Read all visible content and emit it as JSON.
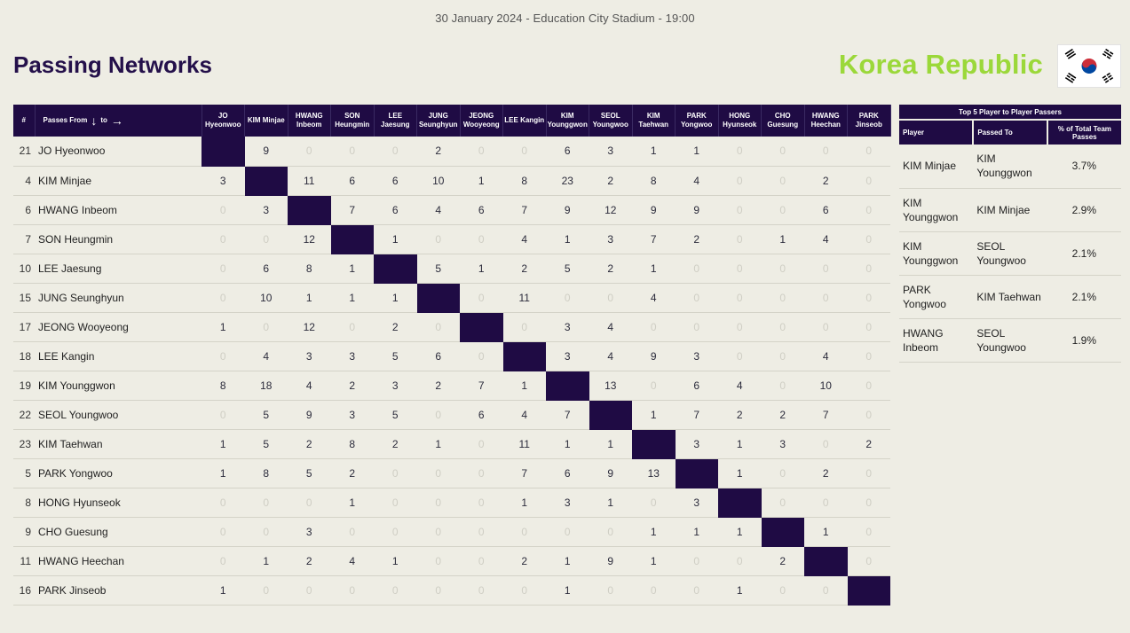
{
  "header": {
    "match_info": "30 January 2024 - Education City Stadium - 19:00",
    "title": "Passing Networks",
    "team": "Korea Republic",
    "flag_icon": "korea-flag-icon"
  },
  "colors": {
    "header_bg": "#1f0b44",
    "accent": "#9bd83a",
    "page_bg": "#eeede4"
  },
  "matrix": {
    "num_header": "#",
    "from_label": "Passes From",
    "to_label": "to",
    "columns": [
      [
        "JO",
        "Hyeonwoo"
      ],
      [
        "KIM Minjae",
        ""
      ],
      [
        "HWANG",
        "Inbeom"
      ],
      [
        "SON",
        "Heungmin"
      ],
      [
        "LEE",
        "Jaesung"
      ],
      [
        "JUNG",
        "Seunghyun"
      ],
      [
        "JEONG",
        "Wooyeong"
      ],
      [
        "LEE Kangin",
        ""
      ],
      [
        "KIM",
        "Younggwon"
      ],
      [
        "SEOL",
        "Youngwoo"
      ],
      [
        "KIM",
        "Taehwan"
      ],
      [
        "PARK",
        "Yongwoo"
      ],
      [
        "HONG",
        "Hyunseok"
      ],
      [
        "CHO",
        "Guesung"
      ],
      [
        "HWANG",
        "Heechan"
      ],
      [
        "PARK",
        "Jinseob"
      ]
    ],
    "rows": [
      {
        "num": "21",
        "name": "JO Hyeonwoo",
        "values": [
          "",
          "9",
          "0",
          "0",
          "0",
          "2",
          "0",
          "0",
          "6",
          "3",
          "1",
          "1",
          "0",
          "0",
          "0",
          "0"
        ]
      },
      {
        "num": "4",
        "name": "KIM Minjae",
        "values": [
          "3",
          "",
          "11",
          "6",
          "6",
          "10",
          "1",
          "8",
          "23",
          "2",
          "8",
          "4",
          "0",
          "0",
          "2",
          "0"
        ]
      },
      {
        "num": "6",
        "name": "HWANG Inbeom",
        "values": [
          "0",
          "3",
          "",
          "7",
          "6",
          "4",
          "6",
          "7",
          "9",
          "12",
          "9",
          "9",
          "0",
          "0",
          "6",
          "0"
        ]
      },
      {
        "num": "7",
        "name": "SON Heungmin",
        "values": [
          "0",
          "0",
          "12",
          "",
          "1",
          "0",
          "0",
          "4",
          "1",
          "3",
          "7",
          "2",
          "0",
          "1",
          "4",
          "0"
        ]
      },
      {
        "num": "10",
        "name": "LEE Jaesung",
        "values": [
          "0",
          "6",
          "8",
          "1",
          "",
          "5",
          "1",
          "2",
          "5",
          "2",
          "1",
          "0",
          "0",
          "0",
          "0",
          "0"
        ]
      },
      {
        "num": "15",
        "name": "JUNG Seunghyun",
        "values": [
          "0",
          "10",
          "1",
          "1",
          "1",
          "",
          "0",
          "11",
          "0",
          "0",
          "4",
          "0",
          "0",
          "0",
          "0",
          "0"
        ]
      },
      {
        "num": "17",
        "name": "JEONG Wooyeong",
        "values": [
          "1",
          "0",
          "12",
          "0",
          "2",
          "0",
          "",
          "0",
          "3",
          "4",
          "0",
          "0",
          "0",
          "0",
          "0",
          "0"
        ]
      },
      {
        "num": "18",
        "name": "LEE Kangin",
        "values": [
          "0",
          "4",
          "3",
          "3",
          "5",
          "6",
          "0",
          "",
          "3",
          "4",
          "9",
          "3",
          "0",
          "0",
          "4",
          "0"
        ]
      },
      {
        "num": "19",
        "name": "KIM Younggwon",
        "values": [
          "8",
          "18",
          "4",
          "2",
          "3",
          "2",
          "7",
          "1",
          "",
          "13",
          "0",
          "6",
          "4",
          "0",
          "10",
          "0"
        ]
      },
      {
        "num": "22",
        "name": "SEOL Youngwoo",
        "values": [
          "0",
          "5",
          "9",
          "3",
          "5",
          "0",
          "6",
          "4",
          "7",
          "",
          "1",
          "7",
          "2",
          "2",
          "7",
          "0"
        ]
      },
      {
        "num": "23",
        "name": "KIM Taehwan",
        "values": [
          "1",
          "5",
          "2",
          "8",
          "2",
          "1",
          "0",
          "11",
          "1",
          "1",
          "",
          "3",
          "1",
          "3",
          "0",
          "2"
        ]
      },
      {
        "num": "5",
        "name": "PARK Yongwoo",
        "values": [
          "1",
          "8",
          "5",
          "2",
          "0",
          "0",
          "0",
          "7",
          "6",
          "9",
          "13",
          "",
          "1",
          "0",
          "2",
          "0"
        ]
      },
      {
        "num": "8",
        "name": "HONG Hyunseok",
        "values": [
          "0",
          "0",
          "0",
          "1",
          "0",
          "0",
          "0",
          "1",
          "3",
          "1",
          "0",
          "3",
          "",
          "0",
          "0",
          "0"
        ]
      },
      {
        "num": "9",
        "name": "CHO Guesung",
        "values": [
          "0",
          "0",
          "3",
          "0",
          "0",
          "0",
          "0",
          "0",
          "0",
          "0",
          "1",
          "1",
          "1",
          "",
          "1",
          "0"
        ]
      },
      {
        "num": "11",
        "name": "HWANG Heechan",
        "values": [
          "0",
          "1",
          "2",
          "4",
          "1",
          "0",
          "0",
          "2",
          "1",
          "9",
          "1",
          "0",
          "0",
          "2",
          "",
          "0"
        ]
      },
      {
        "num": "16",
        "name": "PARK Jinseob",
        "values": [
          "1",
          "0",
          "0",
          "0",
          "0",
          "0",
          "0",
          "0",
          "1",
          "0",
          "0",
          "0",
          "1",
          "0",
          "0",
          ""
        ]
      }
    ]
  },
  "top5": {
    "caption": "Top 5 Player to Player Passers",
    "headers": {
      "player": "Player",
      "passed_to": "Passed To",
      "pct": "% of Total Team Passes"
    },
    "rows": [
      {
        "player": "KIM Minjae",
        "passed_to": "KIM Younggwon",
        "pct": "3.7%"
      },
      {
        "player": "KIM Younggwon",
        "passed_to": "KIM Minjae",
        "pct": "2.9%"
      },
      {
        "player": "KIM Younggwon",
        "passed_to": "SEOL Youngwoo",
        "pct": "2.1%"
      },
      {
        "player": "PARK Yongwoo",
        "passed_to": "KIM Taehwan",
        "pct": "2.1%"
      },
      {
        "player": "HWANG Inbeom",
        "passed_to": "SEOL Youngwoo",
        "pct": "1.9%"
      }
    ]
  }
}
